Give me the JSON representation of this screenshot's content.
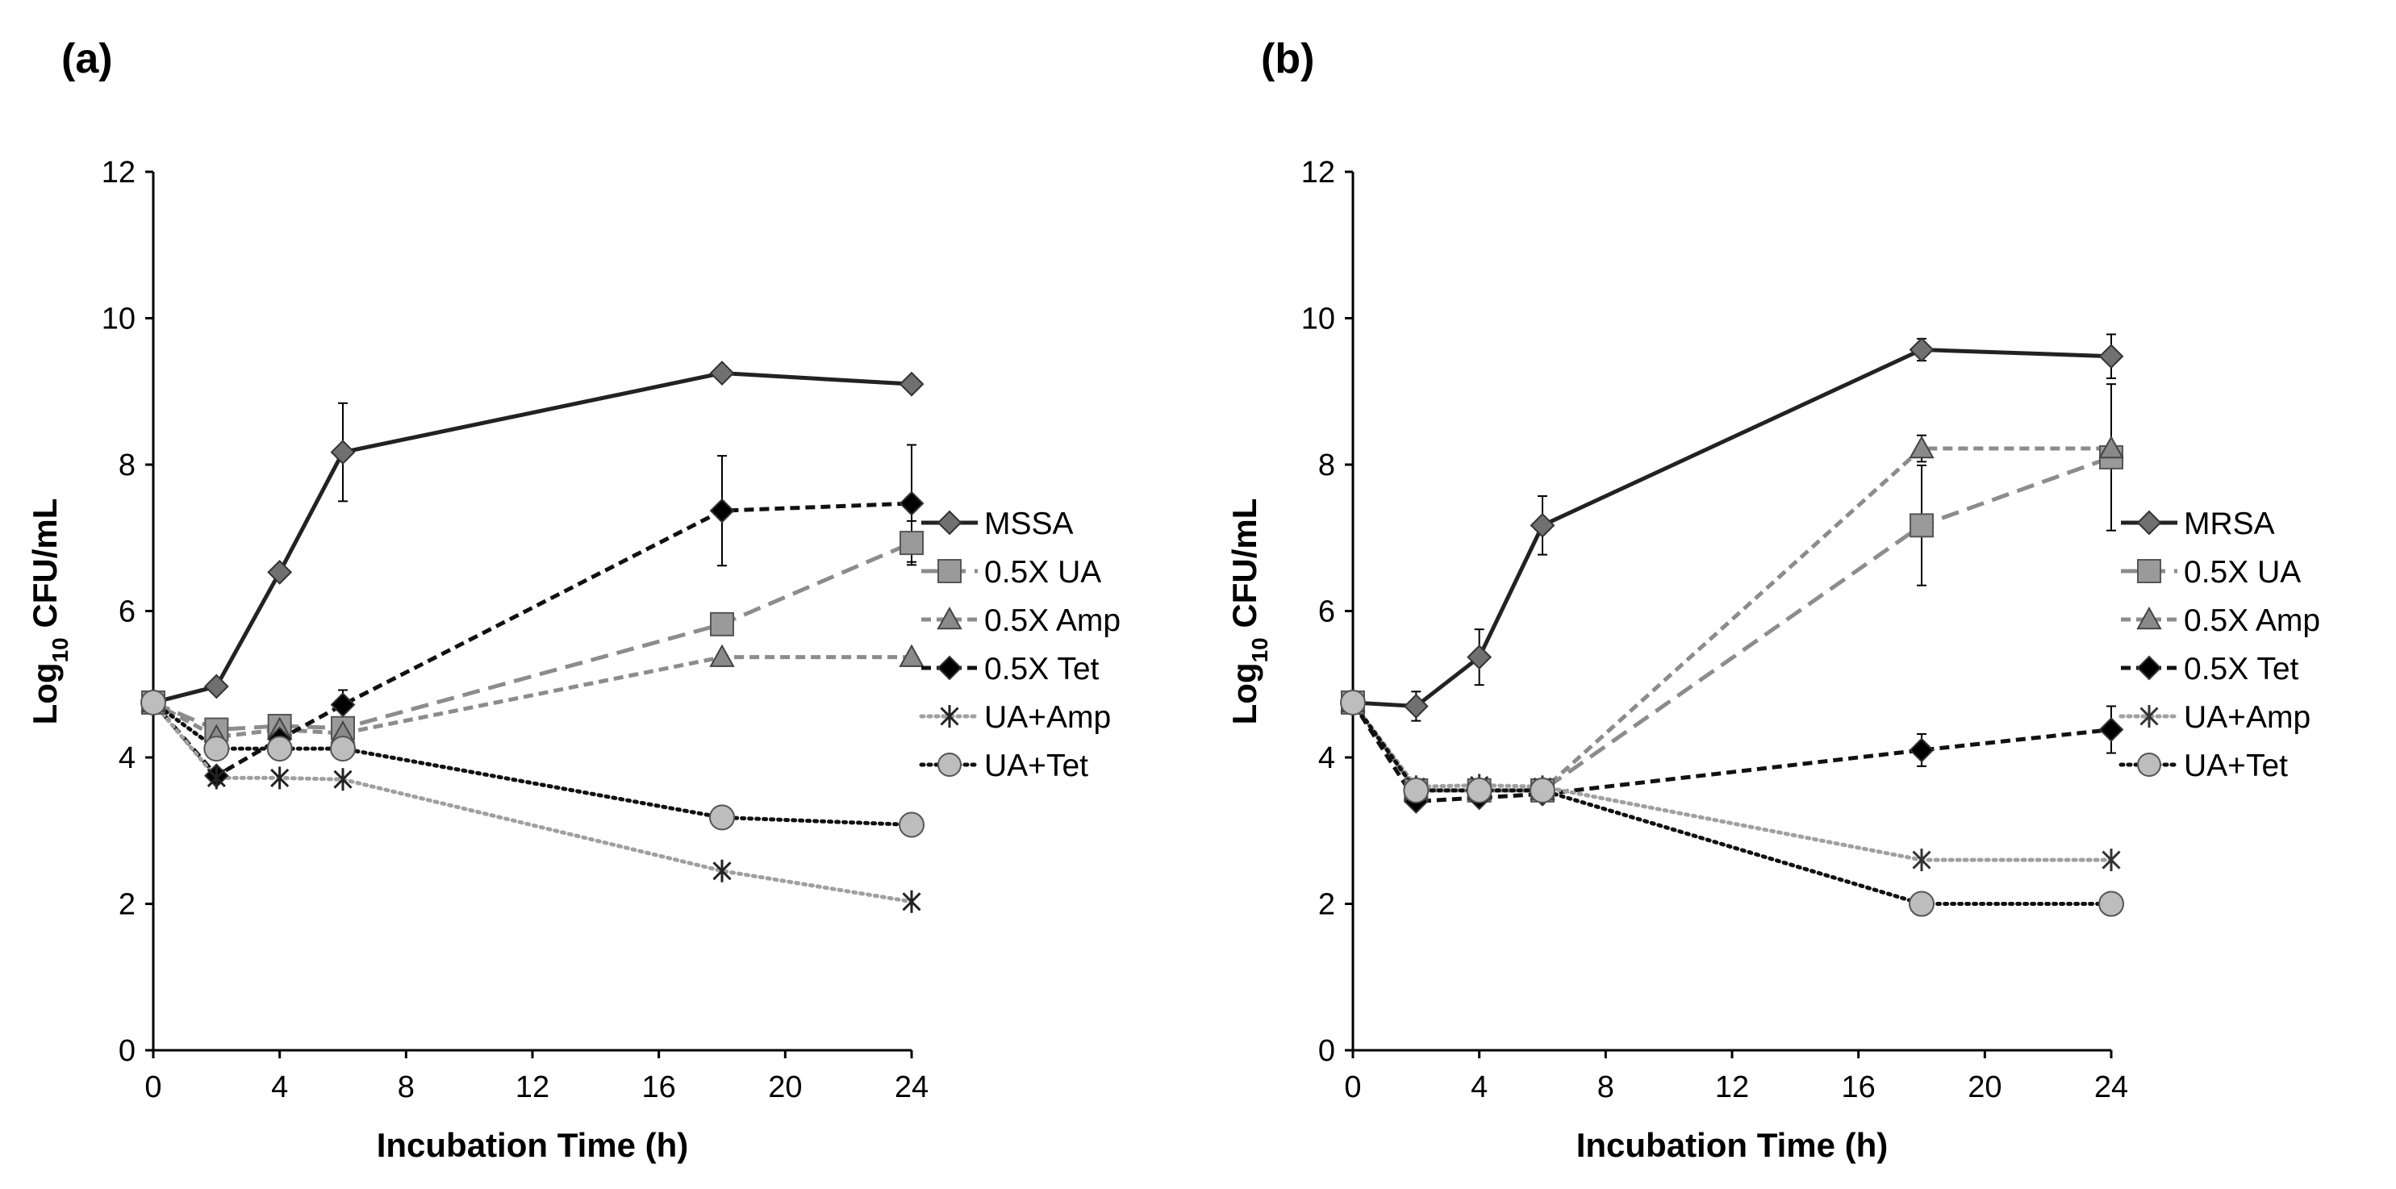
{
  "chart_data": [
    {
      "type": "line",
      "panel_label": "(a)",
      "xlabel": "Incubation Time (h)",
      "ylabel_main": "Log",
      "ylabel_sub": "10",
      "ylabel_rest": " CFU/mL",
      "xlim": [
        0,
        24
      ],
      "ylim": [
        0,
        12
      ],
      "xticks": [
        0,
        4,
        8,
        12,
        16,
        20,
        24
      ],
      "yticks": [
        0,
        2,
        4,
        6,
        8,
        10,
        12
      ],
      "grid": false,
      "legend_position": "right",
      "series": [
        {
          "name": "MSSA",
          "x": [
            0,
            2,
            4,
            6,
            18,
            24
          ],
          "y": [
            4.75,
            4.97,
            6.53,
            8.17,
            9.25,
            9.1
          ],
          "err": [
            0,
            0,
            0,
            0.67,
            0,
            0
          ],
          "marker": "diamond",
          "color": "#222222",
          "marker_color": "#707070",
          "dash": "solid"
        },
        {
          "name": "0.5X UA",
          "x": [
            0,
            2,
            4,
            6,
            18,
            24
          ],
          "y": [
            4.75,
            4.38,
            4.43,
            4.4,
            5.82,
            6.93
          ],
          "err": [
            0,
            0,
            0,
            0,
            0,
            0.3
          ],
          "marker": "square",
          "color": "#8c8c8c",
          "marker_color": "#9a9a9a",
          "dash": "longdash"
        },
        {
          "name": "0.5X Amp",
          "x": [
            0,
            2,
            4,
            6,
            18,
            24
          ],
          "y": [
            4.75,
            4.28,
            4.38,
            4.33,
            5.37,
            5.37
          ],
          "err": [
            0,
            0,
            0,
            0,
            0,
            0
          ],
          "marker": "triangle",
          "color": "#8c8c8c",
          "marker_color": "#8a8a8a",
          "dash": "shortdash"
        },
        {
          "name": "0.5X Tet",
          "x": [
            0,
            2,
            4,
            6,
            18,
            24
          ],
          "y": [
            4.75,
            3.75,
            4.25,
            4.72,
            7.37,
            7.47
          ],
          "err": [
            0,
            0,
            0,
            0.2,
            0.75,
            0.8
          ],
          "marker": "diamond",
          "color": "#111111",
          "marker_color": "#000000",
          "dash": "shortdash"
        },
        {
          "name": "UA+Amp",
          "x": [
            0,
            2,
            4,
            6,
            18,
            24
          ],
          "y": [
            4.75,
            3.72,
            3.72,
            3.7,
            2.45,
            2.03
          ],
          "err": [
            0,
            0,
            0,
            0,
            0,
            0
          ],
          "marker": "asterisk",
          "color": "#a0a0a0",
          "marker_color": "#222222",
          "dash": "dot"
        },
        {
          "name": "UA+Tet",
          "x": [
            0,
            2,
            4,
            6,
            18,
            24
          ],
          "y": [
            4.75,
            4.12,
            4.12,
            4.12,
            3.18,
            3.08
          ],
          "err": [
            0,
            0,
            0,
            0,
            0,
            0
          ],
          "marker": "circle",
          "color": "#111111",
          "marker_color": "#bdbdbd",
          "dash": "dot"
        }
      ]
    },
    {
      "type": "line",
      "panel_label": "(b)",
      "xlabel": "Incubation Time (h)",
      "ylabel_main": "Log",
      "ylabel_sub": "10",
      "ylabel_rest": " CFU/mL",
      "xlim": [
        0,
        24
      ],
      "ylim": [
        0,
        12
      ],
      "xticks": [
        0,
        4,
        8,
        12,
        16,
        20,
        24
      ],
      "yticks": [
        0,
        2,
        4,
        6,
        8,
        10,
        12
      ],
      "grid": false,
      "legend_position": "right",
      "series": [
        {
          "name": "MRSA",
          "x": [
            0,
            2,
            4,
            6,
            18,
            24
          ],
          "y": [
            4.75,
            4.7,
            5.37,
            7.17,
            9.57,
            9.48
          ],
          "err": [
            0,
            0.2,
            0.38,
            0.4,
            0.15,
            0.3
          ],
          "marker": "diamond",
          "color": "#222222",
          "marker_color": "#707070",
          "dash": "solid"
        },
        {
          "name": "0.5X UA",
          "x": [
            0,
            2,
            4,
            6,
            18,
            24
          ],
          "y": [
            4.75,
            3.55,
            3.55,
            3.55,
            7.17,
            8.1
          ],
          "err": [
            0,
            0,
            0,
            0,
            0.82,
            1.0
          ],
          "marker": "square",
          "color": "#8c8c8c",
          "marker_color": "#9a9a9a",
          "dash": "longdash"
        },
        {
          "name": "0.5X Amp",
          "x": [
            0,
            2,
            4,
            6,
            18,
            24
          ],
          "y": [
            4.75,
            3.55,
            3.55,
            3.55,
            8.22,
            8.22
          ],
          "err": [
            0,
            0,
            0,
            0,
            0.18,
            0
          ],
          "marker": "triangle",
          "color": "#8c8c8c",
          "marker_color": "#8a8a8a",
          "dash": "shortdash"
        },
        {
          "name": "0.5X Tet",
          "x": [
            0,
            2,
            4,
            6,
            18,
            24
          ],
          "y": [
            4.75,
            3.4,
            3.45,
            3.5,
            4.1,
            4.38
          ],
          "err": [
            0,
            0,
            0,
            0,
            0.22,
            0.32
          ],
          "marker": "diamond",
          "color": "#111111",
          "marker_color": "#000000",
          "dash": "shortdash"
        },
        {
          "name": "UA+Amp",
          "x": [
            0,
            2,
            4,
            6,
            18,
            24
          ],
          "y": [
            4.75,
            3.6,
            3.62,
            3.6,
            2.6,
            2.6
          ],
          "err": [
            0,
            0,
            0,
            0,
            0,
            0
          ],
          "marker": "asterisk",
          "color": "#a0a0a0",
          "marker_color": "#333333",
          "dash": "dot"
        },
        {
          "name": "UA+Tet",
          "x": [
            0,
            2,
            4,
            6,
            18,
            24
          ],
          "y": [
            4.75,
            3.55,
            3.55,
            3.55,
            2.0,
            2.0
          ],
          "err": [
            0,
            0,
            0,
            0,
            0,
            0
          ],
          "marker": "circle",
          "color": "#111111",
          "marker_color": "#bdbdbd",
          "dash": "dot"
        }
      ]
    }
  ]
}
